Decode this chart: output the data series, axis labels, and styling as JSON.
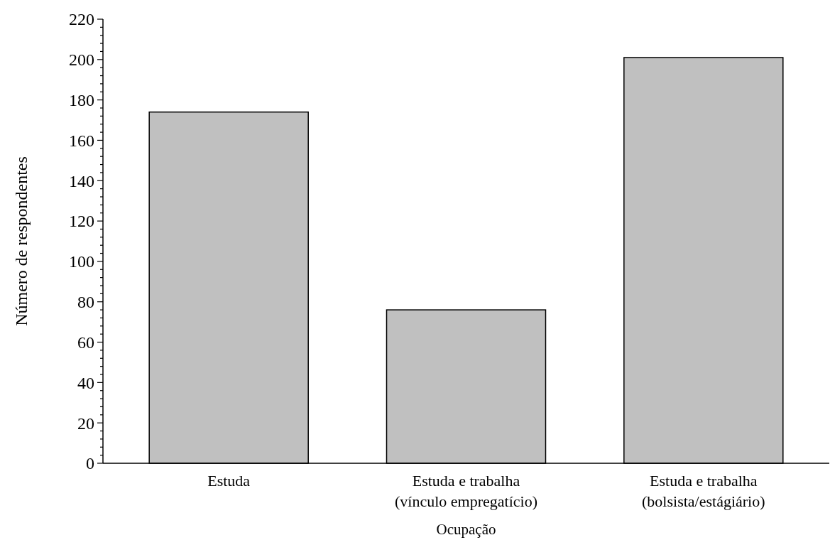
{
  "chart_data": {
    "type": "bar",
    "xlabel": "Ocupação",
    "ylabel": "Número de respondentes",
    "categories": [
      "Estuda",
      "Estuda e trabalha\n(vínculo empregatício)",
      "Estuda e trabalha\n(bolsista/estágiário)"
    ],
    "values": [
      174,
      76,
      201
    ],
    "color": "#c0c0c0",
    "ylim": [
      0,
      220
    ],
    "yticks": [
      0,
      {
        "value": 4,
        "label": null
      },
      {
        "value": 8,
        "label": null
      },
      {
        "value": 12,
        "label": null
      },
      {
        "value": 16,
        "label": null
      },
      20,
      {
        "value": 24,
        "label": null
      },
      {
        "value": 28,
        "label": null
      },
      {
        "value": 32,
        "label": null
      },
      {
        "value": 36,
        "label": null
      },
      40,
      {
        "value": 44,
        "label": null
      },
      {
        "value": 48,
        "label": null
      },
      {
        "value": 52,
        "label": null
      },
      {
        "value": 56,
        "label": null
      },
      60,
      {
        "value": 64,
        "label": null
      },
      {
        "value": 68,
        "label": null
      },
      {
        "value": 72,
        "label": null
      },
      {
        "value": 76,
        "label": null
      },
      80,
      {
        "value": 84,
        "label": null
      },
      {
        "value": 88,
        "label": null
      },
      {
        "value": 92,
        "label": null
      },
      {
        "value": 96,
        "label": null
      },
      100,
      {
        "value": 104,
        "label": null
      },
      {
        "value": 108,
        "label": null
      },
      {
        "value": 112,
        "label": null
      },
      {
        "value": 116,
        "label": null
      },
      120,
      {
        "value": 124,
        "label": null
      },
      {
        "value": 128,
        "label": null
      },
      {
        "value": 132,
        "label": null
      },
      {
        "value": 136,
        "label": null
      },
      140,
      {
        "value": 144,
        "label": null
      },
      {
        "value": 148,
        "label": null
      },
      {
        "value": 152,
        "label": null
      },
      {
        "value": 156,
        "label": null
      },
      160,
      {
        "value": 164,
        "label": null
      },
      {
        "value": 168,
        "label": null
      },
      {
        "value": 172,
        "label": null
      },
      {
        "value": 176,
        "label": null
      },
      180,
      {
        "value": 184,
        "label": null
      },
      {
        "value": 188,
        "label": null
      },
      {
        "value": 192,
        "label": null
      },
      {
        "value": 196,
        "label": null
      },
      200,
      {
        "value": 204,
        "label": null
      },
      {
        "value": 208,
        "label": null
      },
      {
        "value": 212,
        "label": null
      },
      {
        "value": 216,
        "label": null
      },
      220
    ],
    "grid": false
  }
}
